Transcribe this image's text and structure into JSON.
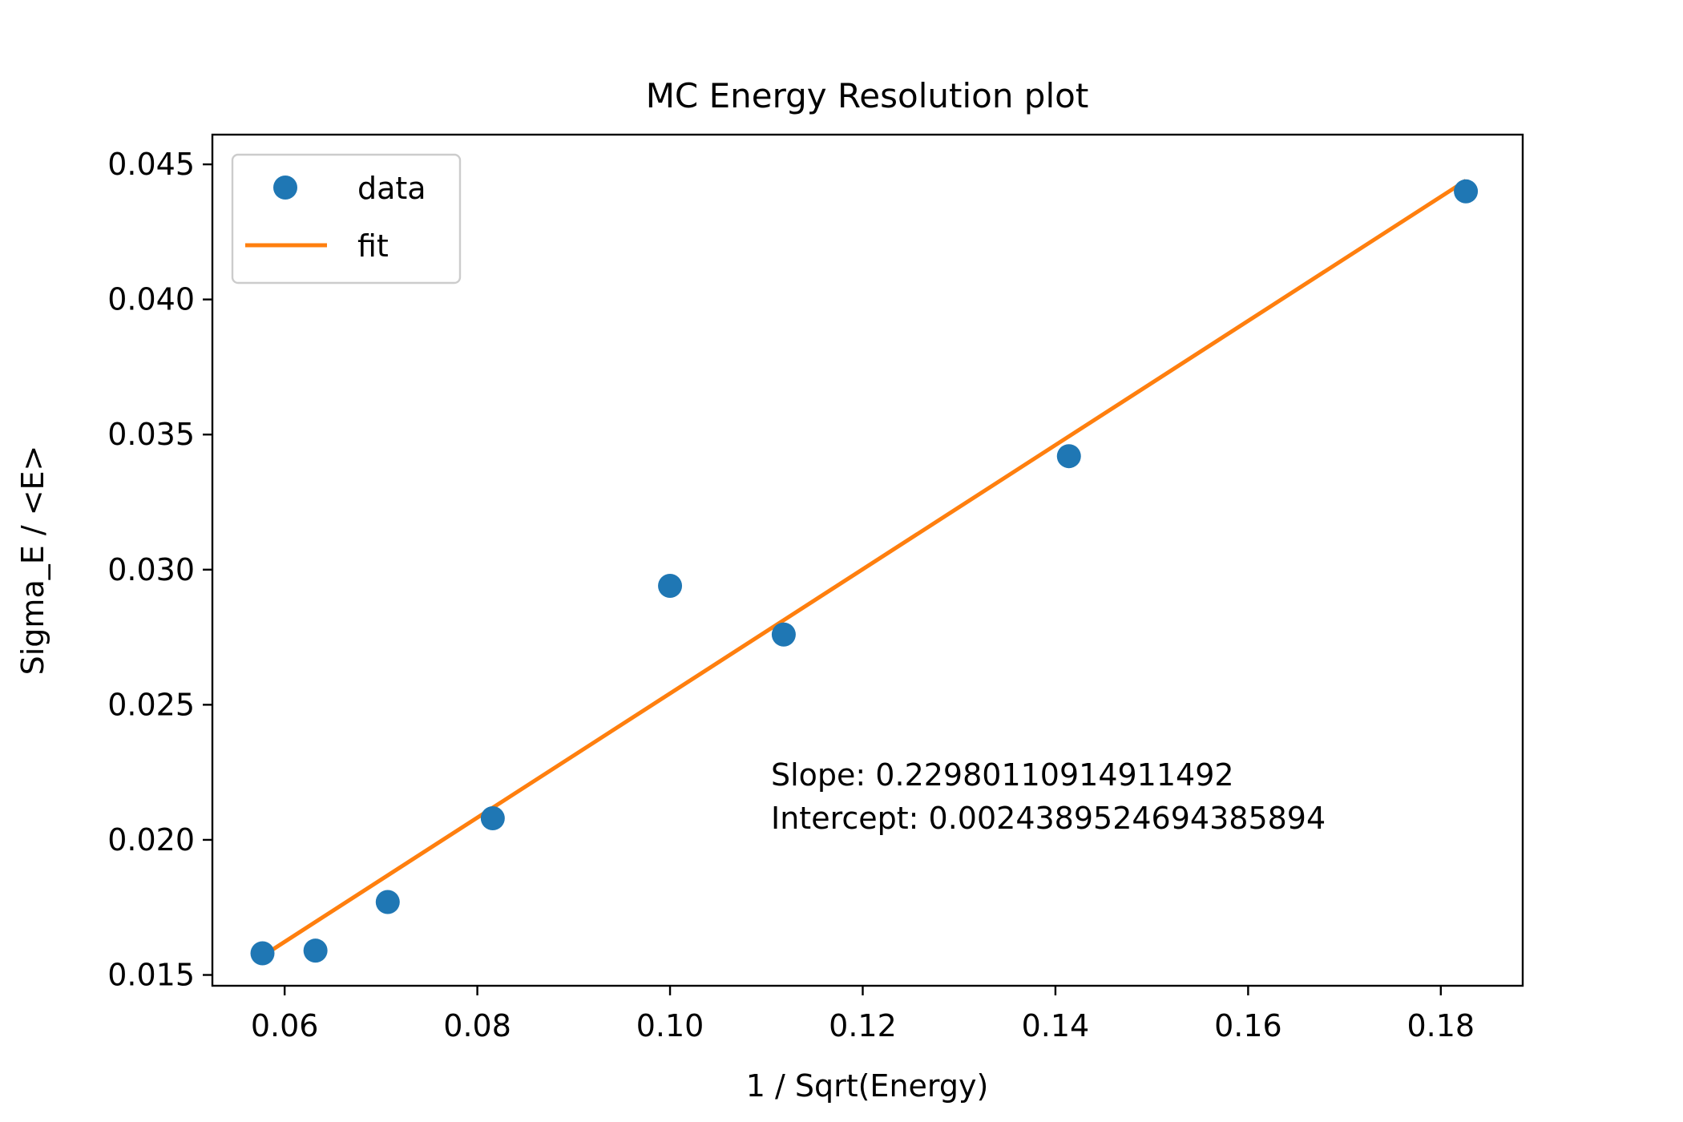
{
  "chart_data": {
    "type": "scatter",
    "title": "MC Energy Resolution plot",
    "xlabel": "1 / Sqrt(Energy)",
    "ylabel": "Sigma_E / <E>",
    "xlim": [
      0.0525,
      0.1885
    ],
    "ylim": [
      0.0146,
      0.0461
    ],
    "x_ticks": [
      0.06,
      0.08,
      0.1,
      0.12,
      0.14,
      0.16,
      0.18
    ],
    "x_tick_labels": [
      "0.06",
      "0.08",
      "0.10",
      "0.12",
      "0.14",
      "0.16",
      "0.18"
    ],
    "y_ticks": [
      0.015,
      0.02,
      0.025,
      0.03,
      0.035,
      0.04,
      0.045
    ],
    "y_tick_labels": [
      "0.015",
      "0.020",
      "0.025",
      "0.030",
      "0.035",
      "0.040",
      "0.045"
    ],
    "grid": false,
    "legend_position": "top-left",
    "series": [
      {
        "name": "data",
        "kind": "scatter",
        "color": "#1f77b4",
        "x": [
          0.0577,
          0.0632,
          0.0707,
          0.0816,
          0.1,
          0.1118,
          0.1414,
          0.1826
        ],
        "y": [
          0.0158,
          0.0159,
          0.0177,
          0.0208,
          0.0294,
          0.0276,
          0.0342,
          0.044
        ]
      },
      {
        "name": "fit",
        "kind": "line",
        "color": "#ff7f0e",
        "slope": 0.22980110914911492,
        "intercept": 0.002438952469438589,
        "x_range": [
          0.0577,
          0.1826
        ]
      }
    ],
    "annotations": [
      "Slope: 0.22980110914911492",
      "Intercept: 0.0024389524694385894"
    ]
  }
}
